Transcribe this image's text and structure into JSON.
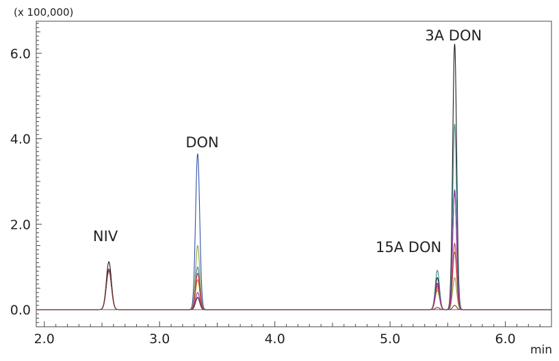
{
  "chart_data": {
    "type": "line",
    "title": "",
    "scale_note": "(x 100,000)",
    "xlabel": "min",
    "ylabel": "",
    "xlim": [
      1.93,
      6.4
    ],
    "ylim": [
      -0.4,
      6.75
    ],
    "x_ticks": [
      {
        "value": 2.0,
        "label": "2.0"
      },
      {
        "value": 3.0,
        "label": "3.0"
      },
      {
        "value": 4.0,
        "label": "4.0"
      },
      {
        "value": 5.0,
        "label": "5.0"
      },
      {
        "value": 6.0,
        "label": "6.0"
      }
    ],
    "y_ticks": [
      {
        "value": 0.0,
        "label": "0.0"
      },
      {
        "value": 2.0,
        "label": "2.0"
      },
      {
        "value": 4.0,
        "label": "4.0"
      },
      {
        "value": 6.0,
        "label": "6.0"
      }
    ],
    "peak_labels": [
      {
        "text": "NIV",
        "x": 2.53,
        "y": 1.6
      },
      {
        "text": "DON",
        "x": 3.37,
        "y": 3.8
      },
      {
        "text": "15A DON",
        "x": 5.16,
        "y": 1.35
      },
      {
        "text": "3A DON",
        "x": 5.55,
        "y": 6.3
      }
    ],
    "peak_centers": {
      "NIV": 2.56,
      "DON": 3.33,
      "15A_DON": 5.41,
      "3A_DON": 5.56
    },
    "series": [
      {
        "color": "#1a1a1a",
        "peaks": [
          1.12,
          0.29,
          0.75,
          6.22
        ]
      },
      {
        "color": "#2e4fa8",
        "peaks": [
          0.95,
          3.65,
          0.6,
          2.8
        ]
      },
      {
        "color": "#3a8a86",
        "peaks": [
          0.95,
          1.0,
          0.92,
          4.35
        ]
      },
      {
        "color": "#8aa040",
        "peaks": [
          0.95,
          1.5,
          0.5,
          0.75
        ]
      },
      {
        "color": "#c47a2a",
        "peaks": [
          0.95,
          0.7,
          0.45,
          1.35
        ]
      },
      {
        "color": "#c0304a",
        "peaks": [
          0.95,
          0.85,
          0.55,
          1.55
        ]
      },
      {
        "color": "#9a2aa0",
        "peaks": [
          0.9,
          0.4,
          0.62,
          2.75
        ]
      },
      {
        "color": "#6a3a2a",
        "peaks": [
          0.95,
          0.28,
          0.05,
          0.1
        ]
      }
    ]
  }
}
